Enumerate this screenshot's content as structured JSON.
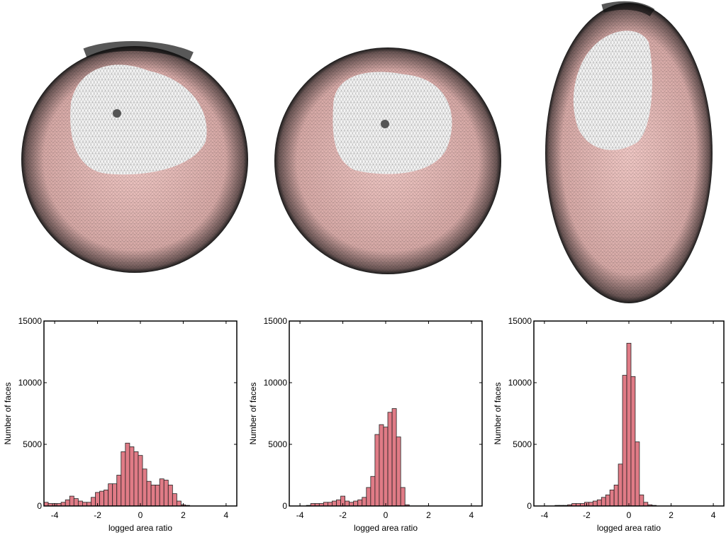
{
  "chart_data": [
    {
      "type": "histogram",
      "xlabel": "logged area ratio",
      "ylabel": "Number of faces",
      "color": "#e07b86",
      "xlim": [
        -4.5,
        4.5
      ],
      "ylim": [
        0,
        15000
      ],
      "xticks": [
        -4,
        -2,
        0,
        2,
        4
      ],
      "yticks": [
        0,
        5000,
        10000,
        15000
      ],
      "bins": [
        -4.5,
        -4.3,
        -4.1,
        -3.9,
        -3.7,
        -3.5,
        -3.3,
        -3.1,
        -2.9,
        -2.7,
        -2.5,
        -2.3,
        -2.1,
        -1.9,
        -1.7,
        -1.5,
        -1.3,
        -1.1,
        -0.9,
        -0.7,
        -0.5,
        -0.3,
        -0.1,
        0.1,
        0.3,
        0.5,
        0.7,
        0.9,
        1.1,
        1.3,
        1.5,
        1.7,
        1.9,
        2.1,
        2.3,
        2.5,
        2.7,
        2.9,
        3.1,
        3.3,
        3.5,
        3.7,
        3.9,
        4.1,
        4.3,
        4.5
      ],
      "values": [
        300,
        200,
        200,
        200,
        300,
        500,
        800,
        600,
        400,
        300,
        300,
        700,
        1100,
        1200,
        1300,
        1800,
        1800,
        2500,
        4400,
        5100,
        4800,
        4400,
        4100,
        3000,
        2000,
        1700,
        1700,
        2200,
        2100,
        1700,
        1000,
        400,
        100,
        50,
        0,
        0,
        0,
        0,
        0,
        0,
        0,
        0,
        0,
        0,
        0
      ]
    },
    {
      "type": "histogram",
      "xlabel": "logged area ratio",
      "ylabel": "Number of faces",
      "color": "#e07b86",
      "xlim": [
        -4.5,
        4.5
      ],
      "ylim": [
        0,
        15000
      ],
      "xticks": [
        -4,
        -2,
        0,
        2,
        4
      ],
      "yticks": [
        0,
        5000,
        10000,
        15000
      ],
      "bins": [
        -4.5,
        -4.3,
        -4.1,
        -3.9,
        -3.7,
        -3.5,
        -3.3,
        -3.1,
        -2.9,
        -2.7,
        -2.5,
        -2.3,
        -2.1,
        -1.9,
        -1.7,
        -1.5,
        -1.3,
        -1.1,
        -0.9,
        -0.7,
        -0.5,
        -0.3,
        -0.1,
        0.1,
        0.3,
        0.5,
        0.7,
        0.9,
        1.1,
        1.3,
        1.5,
        1.7,
        1.9,
        2.1,
        2.3,
        2.5,
        2.7,
        2.9,
        3.1,
        3.3,
        3.5,
        3.7,
        3.9,
        4.1,
        4.3,
        4.5
      ],
      "values": [
        0,
        0,
        0,
        0,
        50,
        200,
        200,
        200,
        300,
        300,
        400,
        500,
        800,
        400,
        300,
        400,
        500,
        700,
        1500,
        2400,
        5800,
        6600,
        6400,
        7600,
        7900,
        5600,
        1500,
        100,
        0,
        0,
        0,
        0,
        0,
        0,
        0,
        0,
        0,
        0,
        0,
        0,
        0,
        0,
        0,
        0,
        0
      ]
    },
    {
      "type": "histogram",
      "xlabel": "logged area ratio",
      "ylabel": "Number of faces",
      "color": "#e07b86",
      "xlim": [
        -4.5,
        4.5
      ],
      "ylim": [
        0,
        15000
      ],
      "xticks": [
        -4,
        -2,
        0,
        2,
        4
      ],
      "yticks": [
        0,
        5000,
        10000,
        15000
      ],
      "bins": [
        -4.5,
        -4.3,
        -4.1,
        -3.9,
        -3.7,
        -3.5,
        -3.3,
        -3.1,
        -2.9,
        -2.7,
        -2.5,
        -2.3,
        -2.1,
        -1.9,
        -1.7,
        -1.5,
        -1.3,
        -1.1,
        -0.9,
        -0.7,
        -0.5,
        -0.3,
        -0.1,
        0.1,
        0.3,
        0.5,
        0.7,
        0.9,
        1.1,
        1.3,
        1.5,
        1.7,
        1.9,
        2.1,
        2.3,
        2.5,
        2.7,
        2.9,
        3.1,
        3.3,
        3.5,
        3.7,
        3.9,
        4.1,
        4.3,
        4.5
      ],
      "values": [
        0,
        0,
        0,
        0,
        0,
        50,
        50,
        50,
        100,
        200,
        200,
        200,
        300,
        300,
        400,
        500,
        700,
        900,
        1300,
        1700,
        3400,
        10600,
        13200,
        10500,
        5200,
        900,
        300,
        100,
        50,
        0,
        0,
        0,
        0,
        0,
        0,
        0,
        0,
        0,
        0,
        0,
        0,
        0,
        0,
        0,
        0
      ]
    }
  ]
}
